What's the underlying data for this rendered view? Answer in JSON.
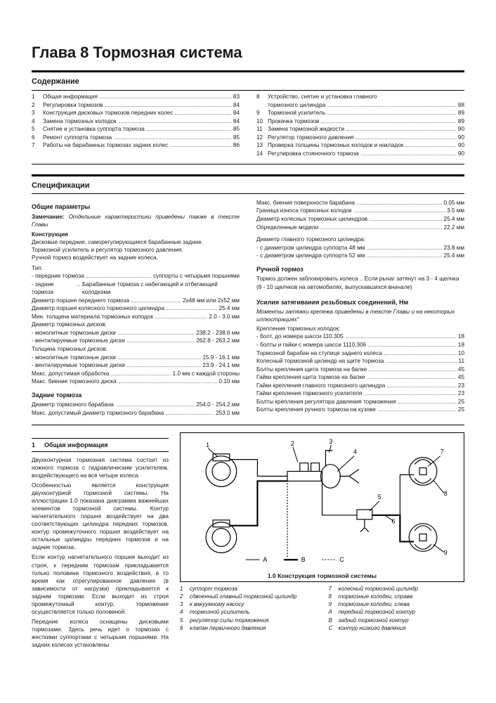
{
  "chapter_title": "Глава 8 Тормозная система",
  "toc": {
    "heading": "Содержание",
    "left": [
      {
        "n": "1",
        "label": "Общая информация",
        "p": "83"
      },
      {
        "n": "2",
        "label": "Регулировка тормозов",
        "p": "84"
      },
      {
        "n": "3",
        "label": "Конструкция дисковых тормозов передних колес",
        "p": "84"
      },
      {
        "n": "4",
        "label": "Замена тормозных колодок",
        "p": "84"
      },
      {
        "n": "5",
        "label": "Снятие и установка суппорта тормоза",
        "p": "85"
      },
      {
        "n": "6",
        "label": "Ремонт суппорта тормоза",
        "p": "85"
      },
      {
        "n": "7",
        "label": "Работы на барабанных тормозах задних колес",
        "p": "86"
      }
    ],
    "right": [
      {
        "n": "8",
        "label": "Устройство, снятие и установка главного",
        "p": ""
      },
      {
        "n": "",
        "label": "тормозного цилиндра",
        "p": "88"
      },
      {
        "n": "9",
        "label": "Тормозной усилитель",
        "p": "89"
      },
      {
        "n": "10",
        "label": "Прокачка тормозов",
        "p": "89"
      },
      {
        "n": "11",
        "label": "Замена тормозной жидкости",
        "p": "90"
      },
      {
        "n": "12",
        "label": "Регулятор тормозного давления",
        "p": "90"
      },
      {
        "n": "13",
        "label": "Проверка толщины тормозных колодок и накладок",
        "p": "90"
      },
      {
        "n": "14",
        "label": "Регулировка стояночного тормоза",
        "p": "90"
      }
    ]
  },
  "spec": {
    "heading": "Спецификации",
    "general_heading": "Общие параметры",
    "note_label": "Замечание:",
    "note_text": "Отдельные характеристики приведены также в тексте Главы",
    "construction_head": "Конструкция",
    "construction_lines": [
      "Дисковые передние, саморегулирующиеся барабанные задние.",
      "Тормозной усилитель и регулятор тормозного давления.",
      "Ручной тормоз воздействует на задние колеса."
    ],
    "type_head": "Тип:",
    "type_rows": [
      {
        "l": "- передние тормоза",
        "v": "суппорты с четырьмя поршнями"
      },
      {
        "l": "- задние тормоза",
        "v": "Барабанные тормоза с набегающей и отбегающей колодками"
      }
    ],
    "left_specs": [
      {
        "l": "Диаметр поршня переднего тормоза",
        "v": "2x48 мм или 2x52 мм"
      },
      {
        "l": "Диаметр поршня колесного тормозного цилиндра",
        "v": "25.4 мм"
      },
      {
        "l": "Мин. толщина материала тормозных колодок",
        "v": "2.0 - 3.0 мм"
      }
    ],
    "disc_diam_head": "Диаметр тормозных дисков:",
    "disc_diam_rows": [
      {
        "l": "- монолитные тормозные диски",
        "v": "238.2 - 238.6 мм"
      },
      {
        "l": "- вентилируемые тормозные диски",
        "v": "262.8 - 263.2 мм"
      }
    ],
    "disc_thick_head": "Толщина тормозных дисков:",
    "disc_thick_rows": [
      {
        "l": "- монолитные тормозные диски",
        "v": "15.9 - 16.1 мм"
      },
      {
        "l": "- вентилируемые тормозные диски",
        "v": "23.9 - 24.1 мм"
      },
      {
        "l": "Макс. допустимая обработка",
        "v": "1.0 мм с каждой стороны"
      },
      {
        "l": "Макс. биение тормозного диска",
        "v": "0.10 мм"
      }
    ],
    "rear_head": "Задние тормоза",
    "rear_rows": [
      {
        "l": "Диаметр тормозного барабана",
        "v": "254.0 - 254.2 мм"
      },
      {
        "l": "Макс. допустимый диаметр тормозного барабана",
        "v": "253.0 мм"
      }
    ],
    "right_top_rows": [
      {
        "l": "Макс. биение поверхности барабана",
        "v": "0.05 мм"
      },
      {
        "l": "Граница износа тормозных колодок",
        "v": "3.5 мм"
      },
      {
        "l": "Диаметр колесных тормозных цилиндров",
        "v": "25.4 мм"
      },
      {
        "l": "Определенные модели",
        "v": "22.2 мм"
      }
    ],
    "master_head": "Диаметр главного тормозного цилиндра:",
    "master_rows": [
      {
        "l": "- с диаметром цилиндра суппорта 48 мм",
        "v": "23.8 мм"
      },
      {
        "l": "- с диаметром цилиндра суппорта 52 мм",
        "v": "25.4 мм"
      }
    ],
    "hand_head": "Ручной тормоз",
    "hand_text": "Тормоз должен заблокировать колеса .. Если рычаг затянут на 3 - 4 щелчка (8 - 10 щелчков на автомобилях, выпускавшихся вначале)",
    "torque_head": "Усилия затягивания резьбовых соединений,   Нм",
    "torque_note": "Моменты затяжки крепежа приведены в тексте Главы и на некоторых иллюстрациях\"",
    "torque_sub": "Крепление тормозных колодок:",
    "torque_rows": [
      {
        "l": "- болт, до номера шасси 110.305",
        "v": "18"
      },
      {
        "l": "- болты и гайки с номера шасси 1110.306",
        "v": "18"
      },
      {
        "l": "Тормозной барабан на ступице заднего колеса",
        "v": "10"
      },
      {
        "l": "Колесный тормозной цилиндр на щите тормоза",
        "v": "11"
      },
      {
        "l": "Болты крепления щита тормоза на балке",
        "v": "45"
      },
      {
        "l": "Гайки крепления щита тормоза на балке",
        "v": "45"
      },
      {
        "l": "Гайки крепления главного тормозного цилиндра",
        "v": "23"
      },
      {
        "l": "Гайки крепления тормозного усилителя",
        "v": "23"
      },
      {
        "l": "Болты крепления регулятора давления торможения",
        "v": "25"
      },
      {
        "l": "Болты крепления ручного тормоза на кузове",
        "v": "25"
      }
    ]
  },
  "section1": {
    "num": "1",
    "title": "Общая информация",
    "paragraphs": [
      "Двухконтурная тормозная система состоит из ножного тормоза с гидравлическим усилителем, воздействующего на все четыре колеса.",
      "Особенностью является конструкция двухконтурной тормозной системы. На иллюстрации 1.0 показана диаграмма важнейших элементов тормозной системы. Контур нагнетательного поршня воздействует на два соответствующих цилиндра передних тормозов, контур промежуточного поршня воздействует на остальные цилиндры передних тормозов и на задние тормоза.",
      "Если контур нагнетательного поршня выходит из строя, к передним тормозам прикладывается только половина тормозного воздействия, в то время как отрегулированное давление (в зависимости от нагрузки) прикладывается к задним тормозам. Если выходит из строя промежуточный контур, торможение осуществляется только половиной.",
      "Передние колеса оснащены дисковыми тормозами. Здесь речь идет о тормозах с жесткими суппортами с четырьмя поршнями. На задних колесах установлены"
    ]
  },
  "figure": {
    "caption": "1.0 Конструкция тормозной системы",
    "labels": [
      "1",
      "2",
      "3",
      "4",
      "5",
      "6",
      "7",
      "8",
      "9",
      "A",
      "B",
      "C"
    ],
    "legend_left": [
      {
        "n": "1",
        "t": "суппорт тормоза"
      },
      {
        "n": "2",
        "t": "сдвоенный главный тормозной цилиндр"
      },
      {
        "n": "3",
        "t": "к вакуумному насосу"
      },
      {
        "n": "4",
        "t": "тормозной усилитель"
      },
      {
        "n": "5",
        "t": "регулятор силы торможения"
      },
      {
        "n": "6",
        "t": "клапан первичного давления"
      }
    ],
    "legend_right": [
      {
        "n": "7",
        "t": "колесный тормозной цилиндр"
      },
      {
        "n": "8",
        "t": "тормозные колодки, справа"
      },
      {
        "n": "9",
        "t": "тормозные колодки, слева"
      },
      {
        "n": "A",
        "t": "передний тормозной контур"
      },
      {
        "n": "B",
        "t": "задний тормозной контур"
      },
      {
        "n": "C",
        "t": "контур низкого давления"
      }
    ]
  },
  "colors": {
    "text": "#1a1a1a",
    "rule": "#000000",
    "dots": "#888888"
  }
}
